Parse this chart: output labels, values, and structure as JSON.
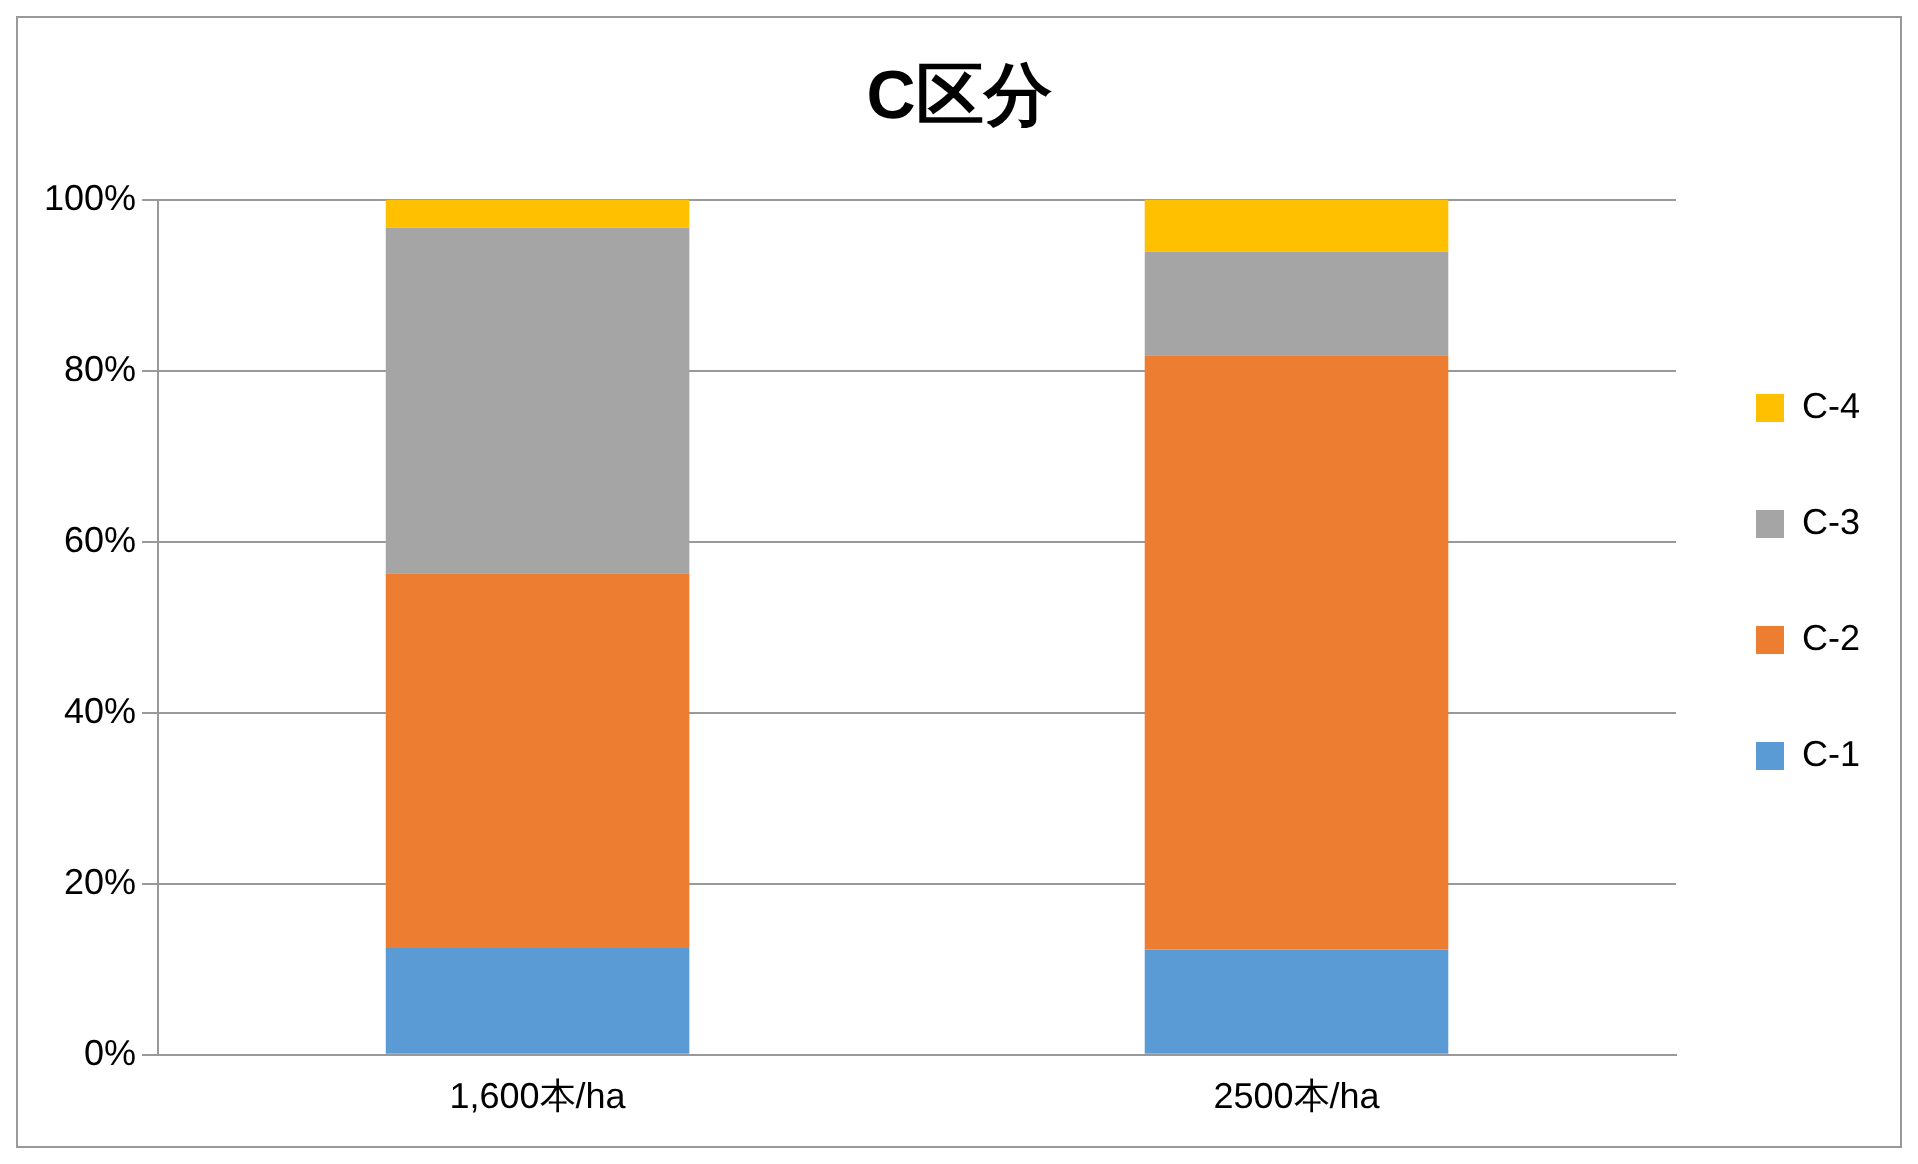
{
  "chart_data": {
    "type": "bar",
    "title": "C区分",
    "stacked": true,
    "categories": [
      "1,600本/ha",
      "2500本/ha"
    ],
    "series": [
      {
        "name": "C-1",
        "color": "#5b9bd5",
        "values": [
          12.5,
          12.3
        ]
      },
      {
        "name": "C-2",
        "color": "#ed7d31",
        "values": [
          43.8,
          69.5
        ]
      },
      {
        "name": "C-3",
        "color": "#a5a5a5",
        "values": [
          40.4,
          12.1
        ]
      },
      {
        "name": "C-4",
        "color": "#ffc000",
        "values": [
          3.3,
          6.1
        ]
      }
    ],
    "ylim": [
      0,
      100
    ],
    "yticks": [
      {
        "value": 0,
        "label": "0%"
      },
      {
        "value": 20,
        "label": "20%"
      },
      {
        "value": 40,
        "label": "40%"
      },
      {
        "value": 60,
        "label": "60%"
      },
      {
        "value": 80,
        "label": "80%"
      },
      {
        "value": 100,
        "label": "100%"
      }
    ],
    "grid": "y",
    "legend": "right"
  }
}
